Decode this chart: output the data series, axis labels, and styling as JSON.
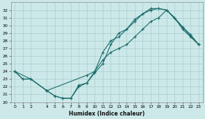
{
  "xlabel": "Humidex (Indice chaleur)",
  "bg_color": "#cce8e8",
  "grid_color": "#aacece",
  "line_color": "#1a6b6b",
  "xlim": [
    -0.5,
    23.5
  ],
  "ylim": [
    20,
    33
  ],
  "yticks": [
    20,
    21,
    22,
    23,
    24,
    25,
    26,
    27,
    28,
    29,
    30,
    31,
    32
  ],
  "xtick_positions": [
    0,
    1,
    2,
    4,
    5,
    6,
    7,
    8,
    9,
    10,
    11,
    12,
    13,
    14,
    15,
    16,
    17,
    18,
    19,
    20,
    21,
    22,
    23
  ],
  "xtick_labels": [
    "0",
    "1",
    "2",
    "4",
    "5",
    "6",
    "7",
    "8",
    "9",
    "10",
    "11",
    "12",
    "13",
    "14",
    "15",
    "16",
    "17",
    "18",
    "19",
    "20",
    "21",
    "22",
    "23"
  ],
  "line1_x": [
    0,
    1,
    2,
    4,
    5,
    6,
    7,
    8,
    9,
    10,
    11,
    12,
    13,
    14,
    15,
    16,
    17,
    18,
    19,
    20,
    21,
    22,
    23
  ],
  "line1_y": [
    24.0,
    23.0,
    23.0,
    21.5,
    20.8,
    20.5,
    20.5,
    22.2,
    22.5,
    24.0,
    26.5,
    28.0,
    28.5,
    29.5,
    30.8,
    31.5,
    32.2,
    32.2,
    32.0,
    31.0,
    29.8,
    28.8,
    27.5
  ],
  "line2_x": [
    0,
    1,
    2,
    4,
    5,
    6,
    7,
    8,
    9,
    10,
    11,
    12,
    13,
    14,
    15,
    16,
    17,
    18,
    19,
    20,
    21,
    22,
    23
  ],
  "line2_y": [
    24.0,
    23.0,
    23.0,
    21.5,
    20.8,
    20.5,
    20.5,
    22.0,
    22.5,
    23.8,
    25.0,
    27.5,
    29.0,
    29.5,
    30.5,
    31.5,
    32.0,
    32.2,
    32.0,
    31.0,
    29.5,
    28.5,
    27.5
  ],
  "line3_x": [
    0,
    2,
    4,
    9,
    10,
    11,
    12,
    13,
    14,
    15,
    16,
    17,
    18,
    19,
    23
  ],
  "line3_y": [
    24.0,
    23.0,
    21.5,
    23.5,
    24.0,
    25.5,
    26.5,
    27.0,
    27.5,
    28.5,
    29.5,
    30.5,
    31.0,
    32.0,
    27.5
  ]
}
